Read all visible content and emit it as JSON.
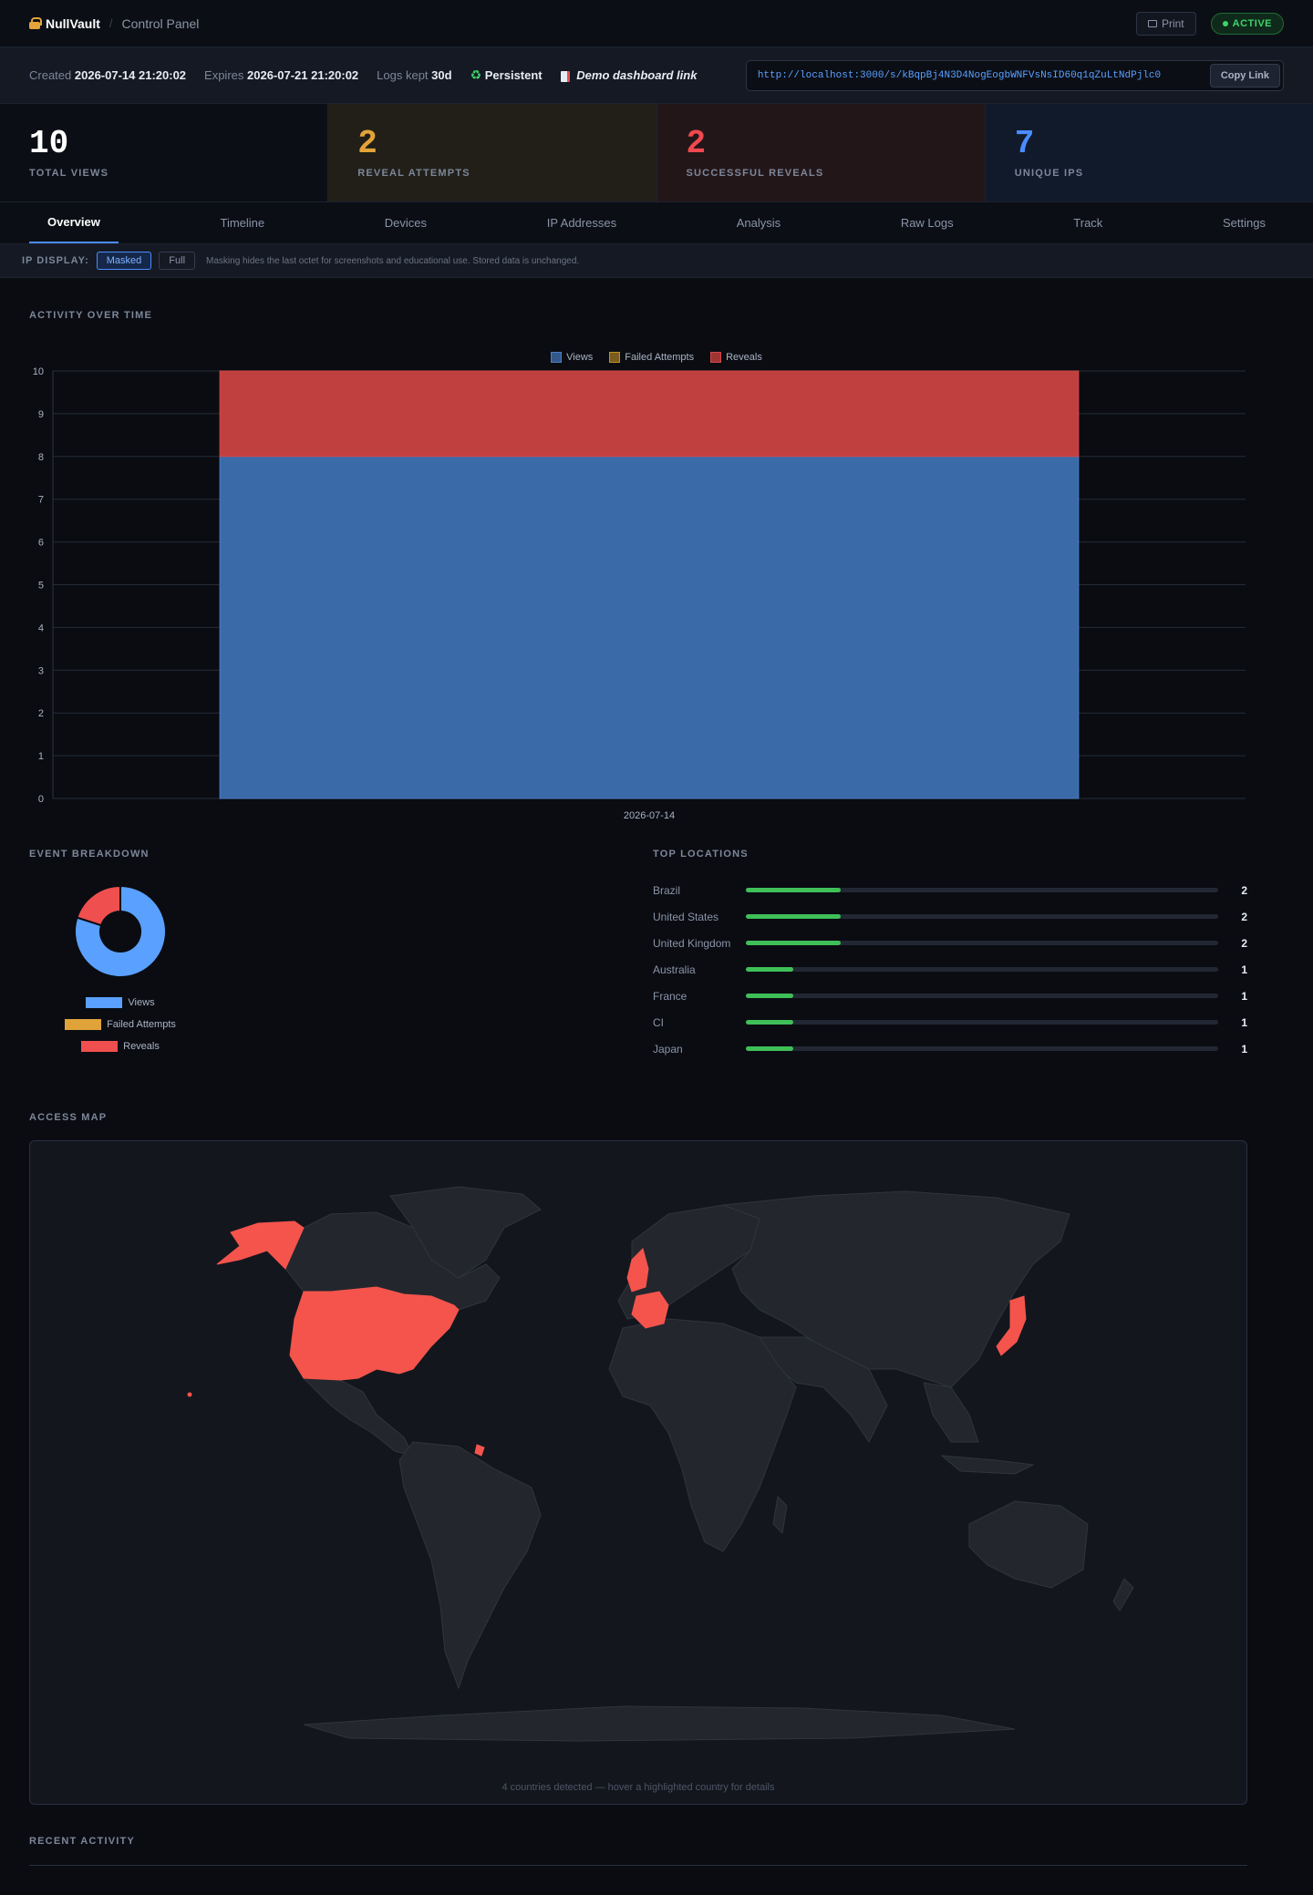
{
  "header": {
    "brand": "NullVault",
    "breadcrumb": "Control Panel",
    "print_label": "Print",
    "status_badge": "ACTIVE"
  },
  "info": {
    "created_label": "Created",
    "created_value": "2026-07-14 21:20:02",
    "expires_label": "Expires",
    "expires_value": "2026-07-21 21:20:02",
    "logs_label": "Logs kept",
    "logs_value": "30d",
    "persistence": "Persistent",
    "demo_link": "Demo dashboard link",
    "share_url": "http://localhost:3000/s/kBqpBj4N3D4NogEogbWNFVsNsID60q1qZuLtNdPjlc0",
    "copy_label": "Copy Link"
  },
  "stats": [
    {
      "value": "10",
      "label": "TOTAL VIEWS"
    },
    {
      "value": "2",
      "label": "REVEAL ATTEMPTS"
    },
    {
      "value": "2",
      "label": "SUCCESSFUL REVEALS"
    },
    {
      "value": "7",
      "label": "UNIQUE IPS"
    }
  ],
  "tabs": [
    "Overview",
    "Timeline",
    "Devices",
    "IP Addresses",
    "Analysis",
    "Raw Logs",
    "Track",
    "Settings"
  ],
  "ip_display": {
    "label": "IP DISPLAY:",
    "masked": "Masked",
    "full": "Full",
    "note": "Masking hides the last octet for screenshots and educational use. Stored data is unchanged."
  },
  "sections": {
    "activity": "ACTIVITY OVER TIME",
    "breakdown": "EVENT BREAKDOWN",
    "locations": "TOP LOCATIONS",
    "map": "ACCESS MAP",
    "recent": "RECENT ACTIVITY"
  },
  "colors": {
    "views": "#3a6aa8",
    "failed": "#c4901e",
    "reveals": "#c0403f",
    "donut_views": "#5aa0ff",
    "donut_failed": "#e0a33a",
    "donut_reveals": "#f04f4f",
    "highlight": "#f4544c"
  },
  "chart_data": [
    {
      "type": "bar",
      "stacked": true,
      "categories": [
        "2026-07-14"
      ],
      "series": [
        {
          "name": "Views",
          "values": [
            8
          ]
        },
        {
          "name": "Failed Attempts",
          "values": [
            0
          ]
        },
        {
          "name": "Reveals",
          "values": [
            2
          ]
        }
      ],
      "ylim": [
        0,
        10
      ],
      "yticks": [
        0,
        1,
        2,
        3,
        4,
        5,
        6,
        7,
        8,
        9,
        10
      ],
      "legend": "top-center",
      "grid": true
    },
    {
      "type": "pie",
      "donut": true,
      "labels": [
        "Views",
        "Failed Attempts",
        "Reveals"
      ],
      "values": [
        8,
        0,
        2
      ],
      "legend": "bottom"
    }
  ],
  "top_locations": [
    {
      "country": "Brazil",
      "count": 2,
      "share": 0.2
    },
    {
      "country": "United States",
      "count": 2,
      "share": 0.2
    },
    {
      "country": "United Kingdom",
      "count": 2,
      "share": 0.2
    },
    {
      "country": "Australia",
      "count": 1,
      "share": 0.1
    },
    {
      "country": "France",
      "count": 1,
      "share": 0.1
    },
    {
      "country": "CI",
      "count": 1,
      "share": 0.1
    },
    {
      "country": "Japan",
      "count": 1,
      "share": 0.1
    }
  ],
  "map": {
    "highlighted": [
      "United States",
      "United Kingdom",
      "France",
      "Japan"
    ],
    "caption": "4 countries detected — hover a highlighted country for details"
  }
}
